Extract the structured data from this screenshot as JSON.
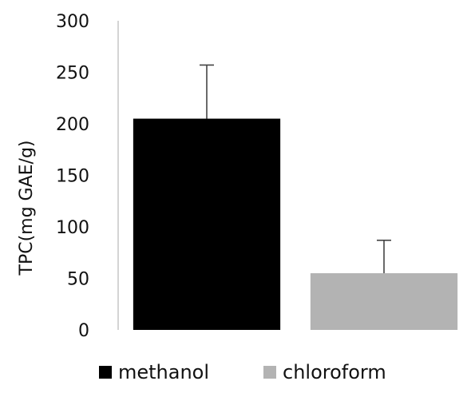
{
  "chart_data": {
    "type": "bar",
    "categories": [
      "methanol",
      "chloroform"
    ],
    "series": [
      {
        "name": "methanol",
        "values": [
          205,
          null
        ],
        "errors": [
          52,
          null
        ],
        "color": "#000000"
      },
      {
        "name": "chloroform",
        "values": [
          null,
          55
        ],
        "errors": [
          null,
          32
        ],
        "color": "#b3b3b3"
      }
    ],
    "title": "",
    "xlabel": "",
    "ylabel": "TPC(mg GAE/g)",
    "ylim": [
      0,
      300
    ],
    "yticks": [
      "0",
      "50",
      "100",
      "150",
      "200",
      "250",
      "300"
    ],
    "grid": false,
    "legend": {
      "position": "bottom",
      "items": [
        {
          "label": "methanol",
          "color": "#000000"
        },
        {
          "label": "chloroform",
          "color": "#b3b3b3"
        }
      ]
    }
  }
}
